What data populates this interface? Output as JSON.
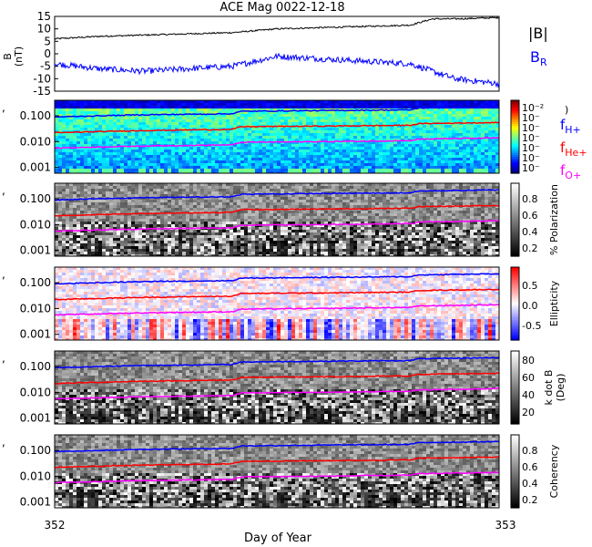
{
  "title": "ACE Mag 0022-12-18",
  "xlabel": "Day of Year",
  "x_ticks": [
    "352",
    "353"
  ],
  "freq_ticks": [
    "0.100",
    "0.010",
    "0.001"
  ],
  "colors": {
    "B_total": "#000000",
    "B_R": "#0000ff",
    "f_H": "#0000ff",
    "f_He": "#ff0000",
    "f_O": "#ff00ff"
  },
  "legend": {
    "B_total": "|B|",
    "B_R_main": "B",
    "B_R_sub": "R",
    "f_H_main": "f",
    "f_H_sub": "H+",
    "f_He_main": "f",
    "f_He_sub": "He+",
    "f_O_main": "f",
    "f_O_sub": "O+"
  },
  "chart_data": [
    {
      "type": "line",
      "panel": "magnetic field",
      "ylabel_main": "B",
      "ylabel_unit": "(nT)",
      "ylim": [
        -15,
        15
      ],
      "y_ticks": [
        "15",
        "10",
        "5",
        "0",
        "-5",
        "-10",
        "-15"
      ],
      "x": [
        352.0,
        352.1,
        352.2,
        352.3,
        352.4,
        352.5,
        352.6,
        352.7,
        352.8,
        352.85,
        352.9,
        353.0
      ],
      "series": [
        {
          "name": "|B|",
          "values": [
            6,
            7,
            7.5,
            8,
            8.5,
            10,
            10.5,
            11,
            11.5,
            14,
            14,
            14.5
          ]
        },
        {
          "name": "B_R",
          "values": [
            -4,
            -6,
            -7,
            -6,
            -5,
            -1,
            -2,
            -3,
            -4,
            -7,
            -10,
            -12
          ]
        }
      ]
    },
    {
      "type": "heatmap",
      "panel": "power spectrum",
      "colorbar_ticks": [
        "10⁻²",
        "10⁻",
        "10⁻",
        "10⁻",
        "10⁻",
        "10⁻",
        "10⁻"
      ],
      "colorbar_extra": ")"
    },
    {
      "type": "heatmap",
      "panel": "polarization",
      "colorbar_label": "% Polarization",
      "colorbar_ticks": [
        "0.8",
        "0.6",
        "0.4",
        "0.2"
      ]
    },
    {
      "type": "heatmap",
      "panel": "ellipticity",
      "colorbar_label": "Ellipticity",
      "colorbar_ticks": [
        "0.5",
        "0.0",
        "-0.5"
      ]
    },
    {
      "type": "heatmap",
      "panel": "wave normal angle",
      "colorbar_label_line1": "k dot B",
      "colorbar_label_line2": "(Deg)",
      "colorbar_ticks": [
        "80",
        "60",
        "40",
        "20"
      ]
    },
    {
      "type": "heatmap",
      "panel": "coherency",
      "colorbar_label": "Coherency",
      "colorbar_ticks": [
        "0.8",
        "0.6",
        "0.4",
        "0.2"
      ]
    },
    {
      "type": "line",
      "panel": "gyrofrequencies (Hz)",
      "x": [
        352.0,
        352.2,
        352.4,
        352.42,
        352.6,
        352.8,
        352.82,
        353.0
      ],
      "series": [
        {
          "name": "f_H+",
          "values": [
            0.09,
            0.11,
            0.12,
            0.15,
            0.16,
            0.17,
            0.2,
            0.22
          ]
        },
        {
          "name": "f_He+",
          "values": [
            0.022,
            0.027,
            0.03,
            0.038,
            0.04,
            0.043,
            0.05,
            0.055
          ]
        },
        {
          "name": "f_O+",
          "values": [
            0.0056,
            0.0068,
            0.0075,
            0.0095,
            0.01,
            0.011,
            0.0125,
            0.014
          ]
        }
      ]
    }
  ]
}
